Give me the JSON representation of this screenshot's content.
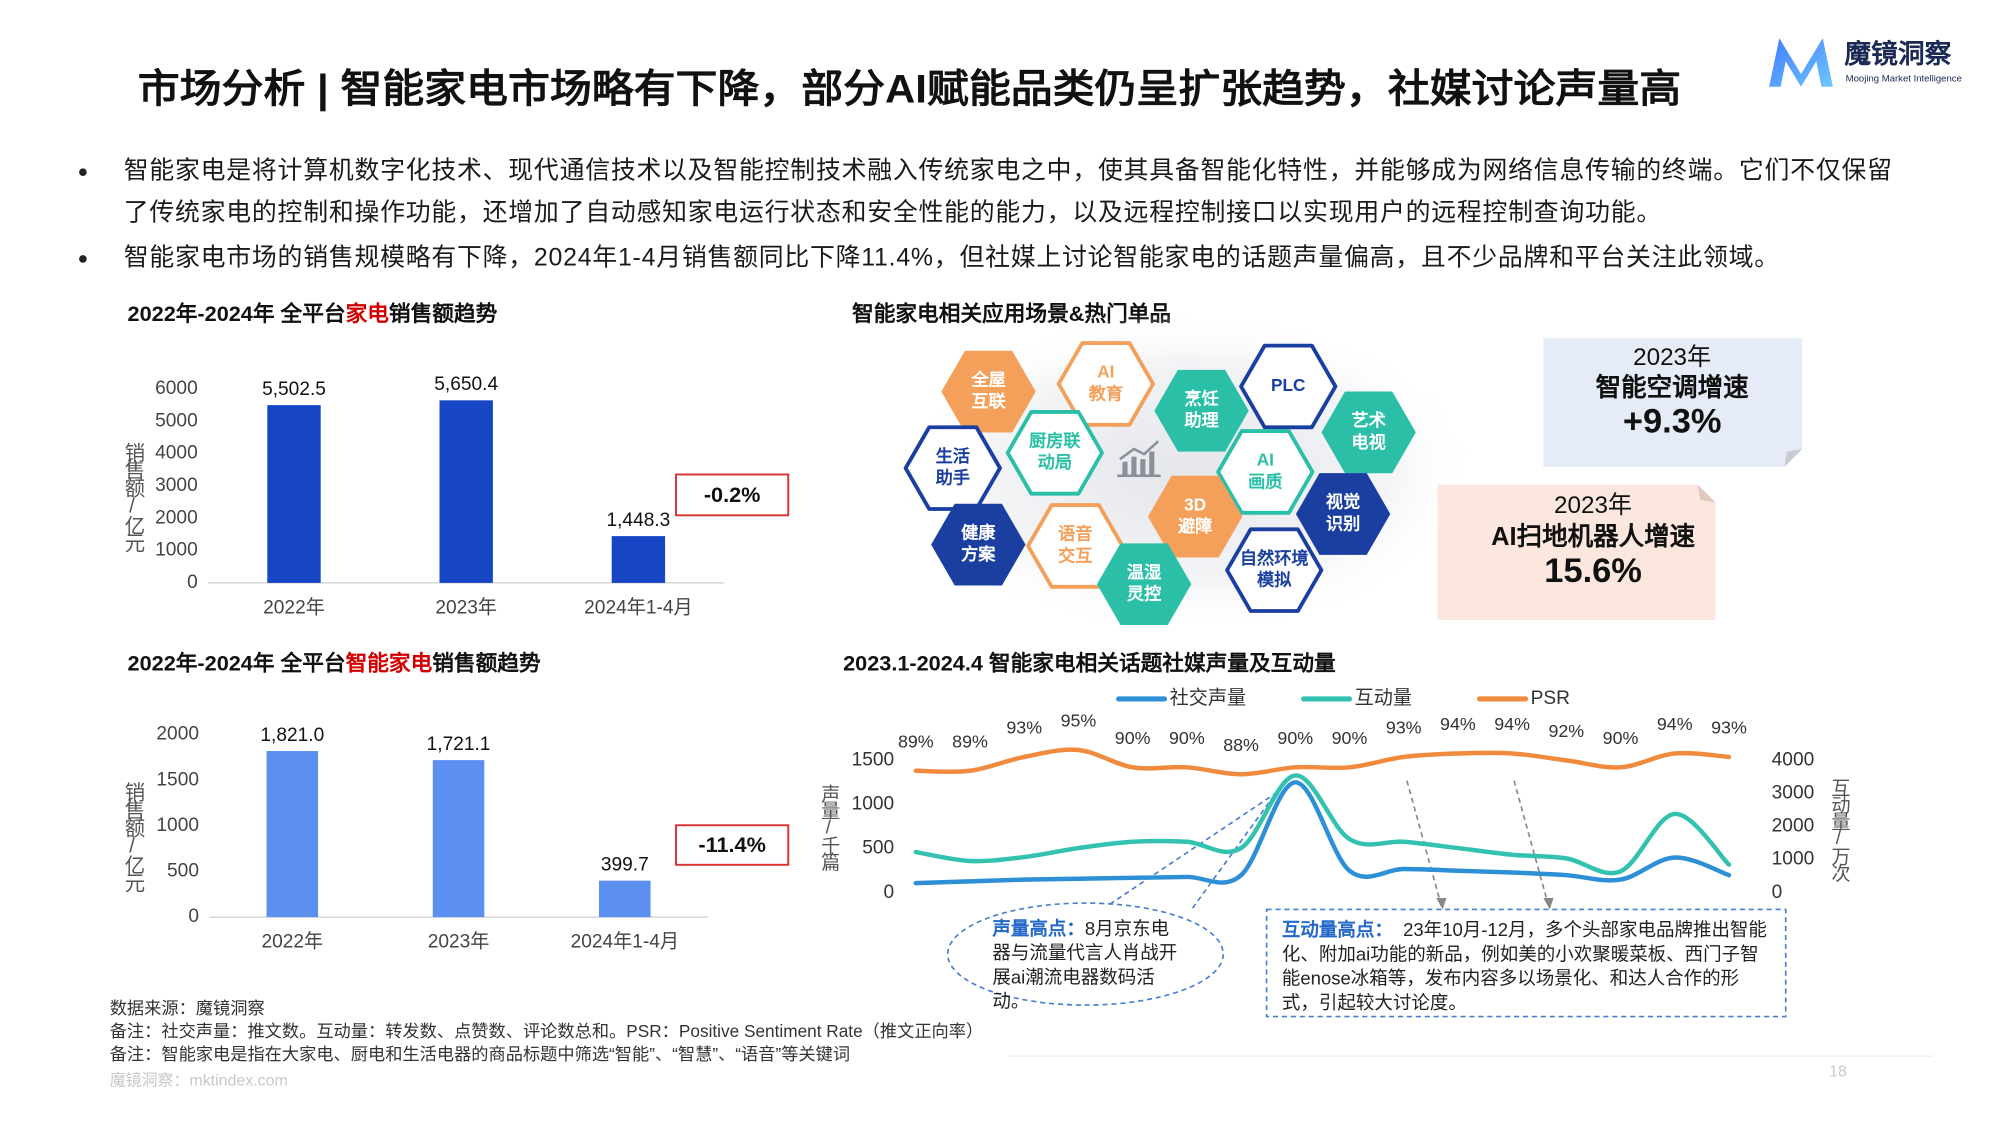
{
  "header": {
    "title": "市场分析 | 智能家电市场略有下降，部分AI赋能品类仍呈扩张趋势，社媒讨论声量高",
    "logo_name": "魔镜洞察",
    "logo_tagline": "Moojing Market Intelligence"
  },
  "bullets": [
    "智能家电是将计算机数字化技术、现代通信技术以及智能控制技术融入传统家电之中，使其具备智能化特性，并能够成为网络信息传输的终端。它们不仅保留了传统家电的控制和操作功能，还增加了自动感知家电运行状态和安全性能的能力，以及远程控制接口以实现用户的远程控制查询功能。",
    "智能家电市场的销售规模略有下降，2024年1-4月销售额同比下降11.4%，但社媒上讨论智能家电的话题声量偏高，且不少品牌和平台关注此领域。"
  ],
  "chart_data": [
    {
      "type": "bar",
      "title": [
        {
          "text": "2022年-2024年 全平台"
        },
        {
          "text": "家电",
          "color": "#d40000"
        },
        {
          "text": "销售额趋势"
        }
      ],
      "categories": [
        "2022年",
        "2023年",
        "2024年1-4月"
      ],
      "values": [
        5502.5,
        5650.4,
        1448.3
      ],
      "value_labels": [
        "5,502.5",
        "5,650.4",
        "1,448.3"
      ],
      "color": "#1746c4",
      "y_label": "销售额/亿元",
      "ylim": [
        0,
        6000
      ],
      "yticks": [
        0,
        1000,
        2000,
        3000,
        4000,
        5000,
        6000
      ],
      "annotation": "-0.2%"
    },
    {
      "type": "bar",
      "title": [
        {
          "text": "2022年-2024年 全平台"
        },
        {
          "text": "智能家电",
          "color": "#d40000"
        },
        {
          "text": "销售额趋势"
        }
      ],
      "categories": [
        "2022年",
        "2023年",
        "2024年1-4月"
      ],
      "values": [
        1821.0,
        1721.1,
        399.7
      ],
      "value_labels": [
        "1,821.0",
        "1,721.1",
        "399.7"
      ],
      "color": "#5b8ff0",
      "y_label": "销售额/亿元",
      "ylim": [
        0,
        2000
      ],
      "yticks": [
        0,
        500,
        1000,
        1500,
        2000
      ],
      "annotation": "-11.4%"
    },
    {
      "type": "line",
      "title": "2023.1-2024.4 智能家电相关话题社媒声量及互动量",
      "categories": [
        null,
        null,
        null,
        null,
        null,
        null,
        null,
        null,
        null,
        null,
        null,
        null,
        null,
        null,
        null,
        null
      ],
      "y_label": "声量/千篇",
      "y2_label": "互动量/万次",
      "ylim": [
        0,
        1500
      ],
      "yticks": [
        0,
        500,
        1000,
        1500
      ],
      "y2lim": [
        0,
        4000
      ],
      "y2ticks": [
        0,
        1000,
        2000,
        3000,
        4000
      ],
      "legend": "top",
      "series": [
        {
          "name": "社交声量",
          "color": "#2d8fd5",
          "values": [
            110,
            130,
            150,
            160,
            170,
            180,
            200,
            1250,
            250,
            270,
            250,
            230,
            200,
            150,
            400,
            200
          ]
        },
        {
          "name": "互动量",
          "color": "#33c2b0",
          "axis": "y2",
          "values": [
            1230,
            960,
            1080,
            1350,
            1540,
            1540,
            1350,
            3540,
            1620,
            1540,
            1350,
            1150,
            1040,
            650,
            2380,
            850
          ]
        },
        {
          "name": "PSR",
          "color": "#f08a3c",
          "values": [
            89,
            89,
            93,
            95,
            90,
            90,
            88,
            90,
            90,
            93,
            94,
            94,
            92,
            90,
            94,
            93
          ],
          "value_labels": [
            "89%",
            "89%",
            "93%",
            "95%",
            "90%",
            "90%",
            "88%",
            "90%",
            "90%",
            "93%",
            "94%",
            "94%",
            "92%",
            "90%",
            "94%",
            "93%"
          ]
        }
      ],
      "annotations": [
        {
          "heading": "声量高点：",
          "text": "8月京东电器与流量代言人肖战开展ai潮流电器数码活动。"
        },
        {
          "heading": "互动量高点：",
          "text": "  23年10月-12月，多个头部家电品牌推出智能化、附加ai功能的新品，例如美的小欢聚暖菜板、西门子智能enose冰箱等，发布内容多以场景化、和达人合作的形式，引起较大讨论度。"
        }
      ]
    }
  ],
  "scenes": {
    "title": "智能家电相关应用场景&热门单品",
    "nodes": [
      {
        "label": [
          "全屋",
          "互联"
        ],
        "color": "#f5a05a",
        "style": "filled"
      },
      {
        "label": [
          "AI",
          "教育"
        ],
        "color": "#f5a05a",
        "style": "outline"
      },
      {
        "label": [
          "烹饪",
          "助理"
        ],
        "color": "#2bbfa8",
        "style": "filled"
      },
      {
        "label": [
          "PLC"
        ],
        "color": "#1a3fa0",
        "style": "outline"
      },
      {
        "label": [
          "艺术",
          "电视"
        ],
        "color": "#2bbfa8",
        "style": "filled"
      },
      {
        "label": [
          "生活",
          "助手"
        ],
        "color": "#1a3fa0",
        "style": "outline"
      },
      {
        "label": [
          "厨房联",
          "动局"
        ],
        "color": "#2bbfa8",
        "style": "outline"
      },
      {
        "label": [
          "AI",
          "画质"
        ],
        "color": "#2bbfa8",
        "style": "outline"
      },
      {
        "label": [
          "视觉",
          "识别"
        ],
        "color": "#1a3fa0",
        "style": "filled"
      },
      {
        "label": [
          "3D",
          "避障"
        ],
        "color": "#f5a05a",
        "style": "filled"
      },
      {
        "label": [
          "健康",
          "方案"
        ],
        "color": "#1a3fa0",
        "style": "filled"
      },
      {
        "label": [
          "语音",
          "交互"
        ],
        "color": "#f5a05a",
        "style": "outline"
      },
      {
        "label": [
          "温湿",
          "灵控"
        ],
        "color": "#2bbfa8",
        "style": "filled"
      },
      {
        "label": [
          "自然环境",
          "模拟"
        ],
        "color": "#1a3fa0",
        "style": "outline"
      }
    ]
  },
  "highlights": [
    {
      "lines": [
        "2023年",
        "智能空调增速",
        "+9.3%"
      ]
    },
    {
      "lines": [
        "2023年",
        "AI扫地机器人增速",
        "15.6%"
      ]
    }
  ],
  "notes": [
    "数据来源：魔镜洞察",
    "备注：社交声量：推文数。互动量：转发数、点赞数、评论数总和。PSR：Positive Sentiment Rate（推文正向率）",
    "备注：智能家电是指在大家电、厨电和生活电器的商品标题中筛选“智能”、“智慧”、“语音”等关键词"
  ],
  "footer": {
    "site": "魔镜洞察：mktindex.com",
    "page": "18"
  }
}
